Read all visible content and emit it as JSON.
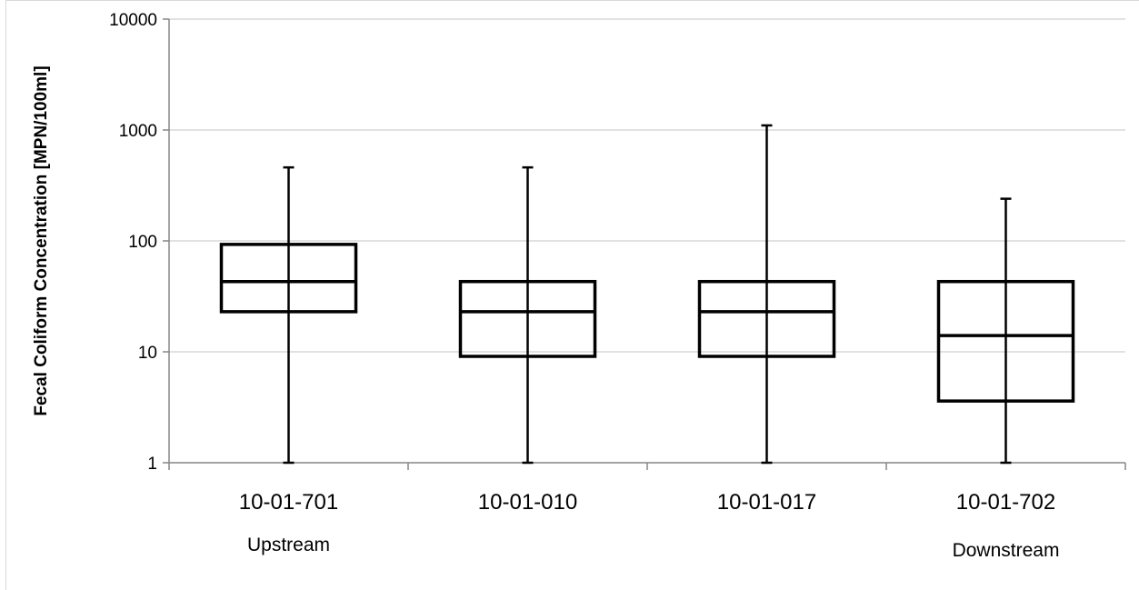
{
  "chart_data": {
    "type": "box",
    "title": "",
    "xlabel": "",
    "ylabel": "Fecal Coliform Concentration [MPN/100ml]",
    "yscale": "log",
    "ylim": [
      1,
      10000
    ],
    "yticks": [
      1,
      10,
      100,
      1000,
      10000
    ],
    "ytick_labels": [
      "1",
      "10",
      "100",
      "1000",
      "10000"
    ],
    "grid": true,
    "legend": "none",
    "categories": [
      "10-01-701",
      "10-01-010",
      "10-01-017",
      "10-01-702"
    ],
    "sublabels": [
      "Upstream",
      "",
      "",
      "Downstream"
    ],
    "boxes": [
      {
        "min": 1,
        "q1": 23,
        "median": 43,
        "q3": 93,
        "max": 460
      },
      {
        "min": 1,
        "q1": 9.1,
        "median": 23,
        "q3": 43,
        "max": 460
      },
      {
        "min": 1,
        "q1": 9.1,
        "median": 23,
        "q3": 43,
        "max": 1100
      },
      {
        "min": 1,
        "q1": 3.6,
        "median": 14,
        "q3": 43,
        "max": 240
      }
    ],
    "colors": {
      "box_stroke": "#000000",
      "grid": "#d9d9d9",
      "axis": "#868686"
    }
  }
}
